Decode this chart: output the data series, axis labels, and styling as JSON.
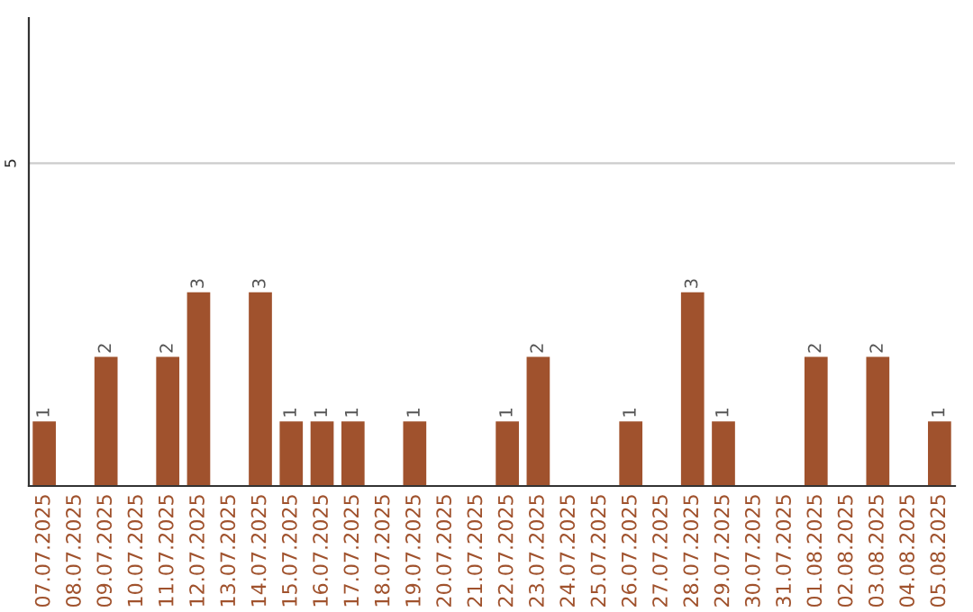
{
  "chart_data": {
    "type": "bar",
    "categories": [
      "07.07.2025",
      "08.07.2025",
      "09.07.2025",
      "10.07.2025",
      "11.07.2025",
      "12.07.2025",
      "13.07.2025",
      "14.07.2025",
      "15.07.2025",
      "16.07.2025",
      "17.07.2025",
      "18.07.2025",
      "19.07.2025",
      "20.07.2025",
      "21.07.2025",
      "22.07.2025",
      "23.07.2025",
      "24.07.2025",
      "25.07.2025",
      "26.07.2025",
      "27.07.2025",
      "28.07.2025",
      "29.07.2025",
      "30.07.2025",
      "31.07.2025",
      "01.08.2025",
      "02.08.2025",
      "03.08.2025",
      "04.08.2025",
      "05.08.2025"
    ],
    "values": [
      1,
      0,
      2,
      0,
      2,
      3,
      0,
      3,
      1,
      1,
      1,
      0,
      1,
      0,
      0,
      1,
      2,
      0,
      0,
      1,
      0,
      3,
      1,
      0,
      0,
      2,
      0,
      2,
      0,
      1
    ],
    "value_labels": [
      "1",
      null,
      "2",
      null,
      "2",
      "3",
      null,
      "3",
      "1",
      "1",
      "1",
      null,
      "1",
      null,
      null,
      "1",
      "2",
      null,
      null,
      "1",
      null,
      "3",
      "1",
      null,
      null,
      "2",
      null,
      "2",
      null,
      "1"
    ],
    "color": "#a0522d",
    "ylim": [
      0,
      7.25
    ],
    "yticks": [
      5
    ],
    "grid": "y"
  }
}
